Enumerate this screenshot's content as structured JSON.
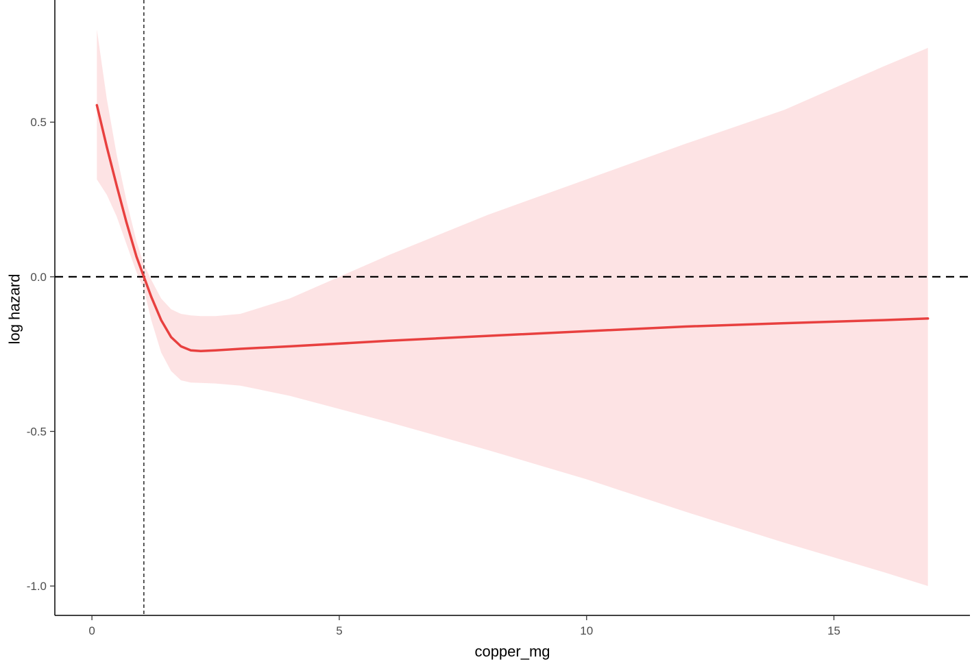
{
  "chart_data": {
    "type": "line",
    "title": "",
    "xlabel": "copper_mg",
    "ylabel": "log hazard",
    "xlim": [
      -0.75,
      17.75
    ],
    "ylim": [
      -1.095,
      0.895
    ],
    "xticks": [
      0,
      5,
      10,
      15
    ],
    "xtick_labels": [
      "0",
      "5",
      "10",
      "15"
    ],
    "yticks": [
      0.5,
      0.0,
      -0.5,
      -1.0
    ],
    "ytick_labels": [
      "0.5",
      "0.0",
      "-0.5",
      "-1.0"
    ],
    "grid": false,
    "legend": "none",
    "reference_lines": {
      "horizontal_y": 0.0,
      "vertical_x": 1.05
    },
    "colors": {
      "line": "#e8403f",
      "ribbon": "#fde3e4",
      "reference": "#000000",
      "axis": "#000000"
    },
    "series": [
      {
        "x": [
          0.1,
          0.3,
          0.5,
          0.7,
          0.9,
          1.05,
          1.2,
          1.4,
          1.6,
          1.8,
          2.0,
          2.2,
          2.5,
          3.0,
          4.0,
          6.0,
          8.0,
          10.0,
          12.0,
          14.0,
          16.0,
          16.9
        ],
        "y": [
          0.555,
          0.42,
          0.295,
          0.175,
          0.065,
          0.0,
          -0.065,
          -0.14,
          -0.195,
          -0.225,
          -0.238,
          -0.24,
          -0.238,
          -0.233,
          -0.225,
          -0.207,
          -0.191,
          -0.176,
          -0.161,
          -0.15,
          -0.14,
          -0.135
        ],
        "lower": [
          0.315,
          0.265,
          0.195,
          0.105,
          0.015,
          -0.04,
          -0.14,
          -0.245,
          -0.305,
          -0.335,
          -0.342,
          -0.343,
          -0.345,
          -0.352,
          -0.385,
          -0.47,
          -0.56,
          -0.655,
          -0.76,
          -0.86,
          -0.955,
          -1.0
        ],
        "upper": [
          0.8,
          0.575,
          0.395,
          0.245,
          0.115,
          0.04,
          -0.01,
          -0.07,
          -0.105,
          -0.12,
          -0.125,
          -0.127,
          -0.127,
          -0.12,
          -0.07,
          0.07,
          0.2,
          0.315,
          0.43,
          0.54,
          0.68,
          0.74
        ]
      }
    ]
  }
}
